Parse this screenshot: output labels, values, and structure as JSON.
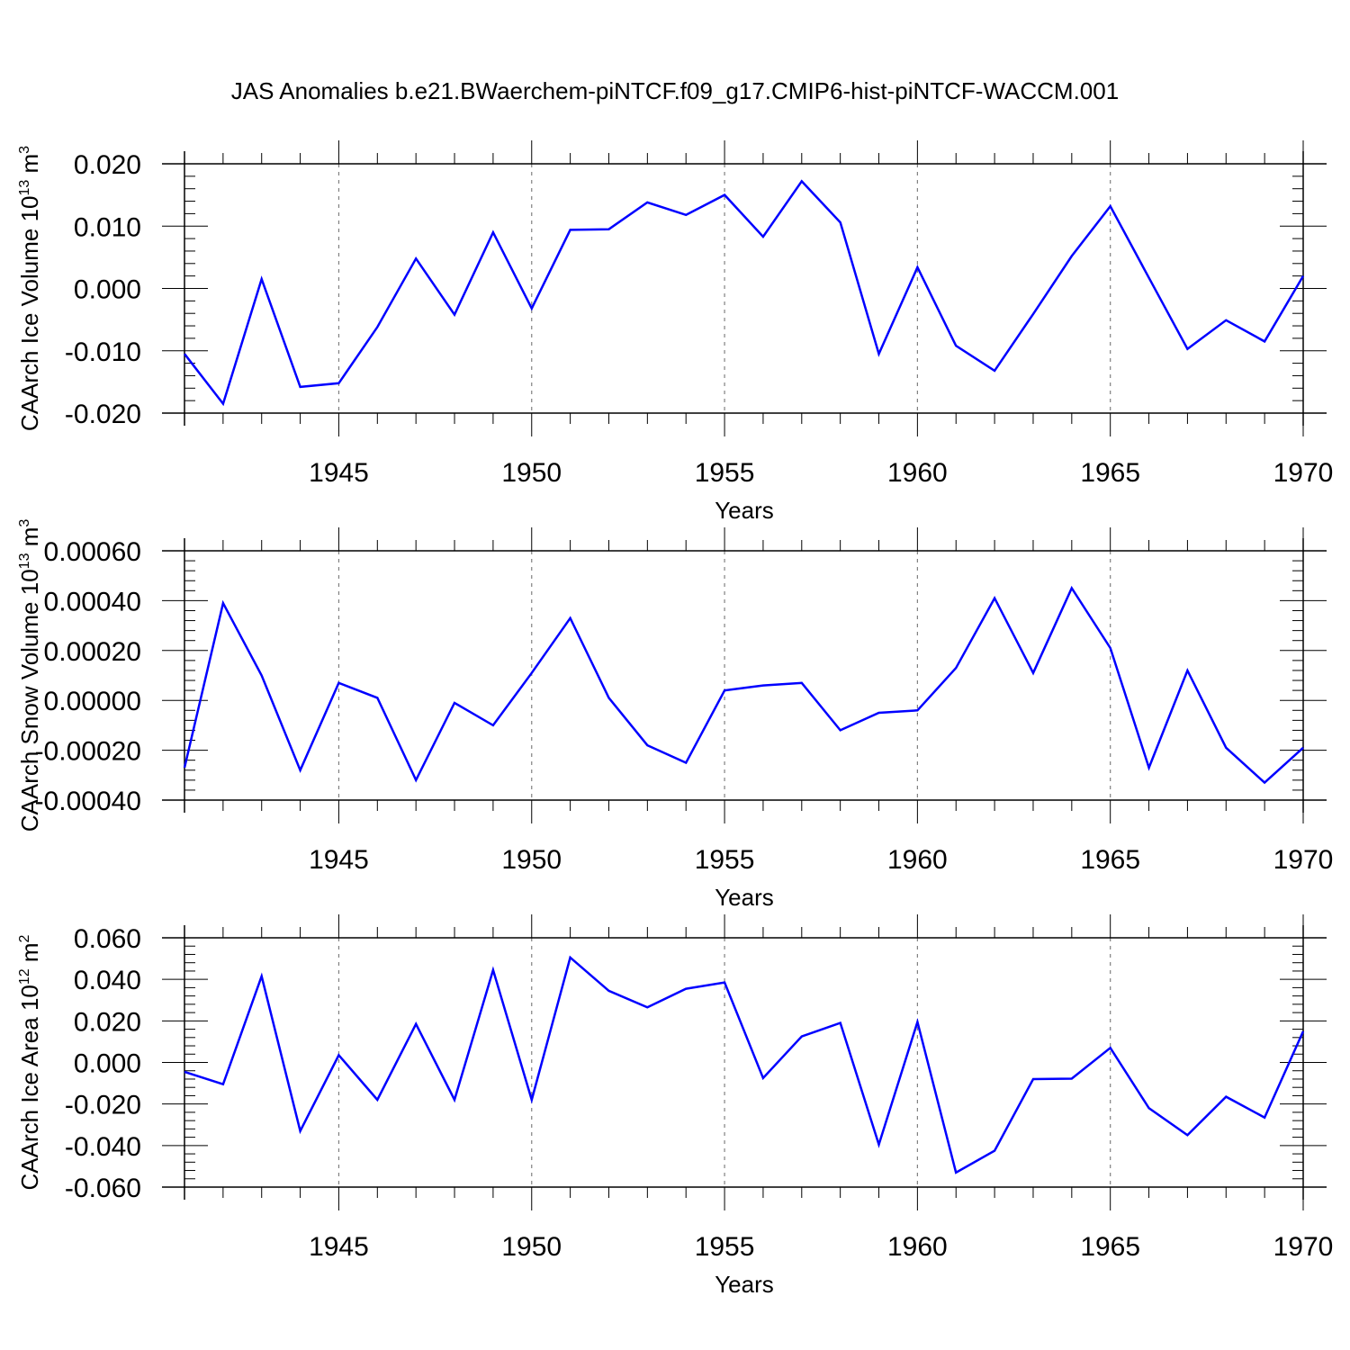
{
  "title": "JAS Anomalies b.e21.BWaerchem-piNTCF.f09_g17.CMIP6-hist-piNTCF-WACCM.001",
  "colors": {
    "line": "#0000ff",
    "axis": "#000000",
    "grid": "#808080",
    "background": "#ffffff"
  },
  "x_ticks": [
    "1945",
    "1950",
    "1955",
    "1960",
    "1965",
    "1970"
  ],
  "chart_data": [
    {
      "type": "line",
      "title": "JAS Anomalies b.e21.BWaerchem-piNTCF.f09_g17.CMIP6-hist-piNTCF-WACCM.001",
      "xlabel": "Years",
      "ylabel": {
        "main": "CAArch Ice Volume 10",
        "sup": "13",
        "unit": " m",
        "unit_sup": "3"
      },
      "xlim": [
        1940.8,
        1970.6
      ],
      "ylim": [
        -0.02,
        0.02
      ],
      "ytick_values": [
        -0.02,
        -0.01,
        0.0,
        0.01,
        0.02
      ],
      "ytick_labels": [
        "-0.020",
        "-0.010",
        "0.000",
        "0.010",
        "0.020"
      ],
      "x": [
        1941,
        1942,
        1943,
        1944,
        1945,
        1946,
        1947,
        1948,
        1949,
        1950,
        1951,
        1952,
        1953,
        1954,
        1955,
        1956,
        1957,
        1958,
        1959,
        1960,
        1961,
        1962,
        1963,
        1964,
        1965,
        1966,
        1967,
        1968,
        1969,
        1970
      ],
      "series": [
        {
          "name": "CAArch Ice Volume",
          "values": [
            -0.0105,
            -0.0185,
            0.0015,
            -0.0158,
            -0.0152,
            -0.0062,
            0.0048,
            -0.0042,
            0.009,
            -0.0032,
            0.0094,
            0.0095,
            0.0138,
            0.0118,
            0.015,
            0.0083,
            0.0172,
            0.0106,
            -0.0105,
            0.0034,
            -0.0092,
            -0.0132,
            -0.0041,
            0.0052,
            0.0132,
            0.0017,
            -0.0097,
            -0.0051,
            -0.0085,
            0.002
          ]
        }
      ]
    },
    {
      "type": "line",
      "xlabel": "Years",
      "ylabel": {
        "main": "CAArch Snow Volume 10",
        "sup": "13",
        "unit": " m",
        "unit_sup": "3"
      },
      "xlim": [
        1940.8,
        1970.6
      ],
      "ylim": [
        -0.0004,
        0.0006
      ],
      "ytick_values": [
        -0.0004,
        -0.0002,
        0.0,
        0.0002,
        0.0004,
        0.0006
      ],
      "ytick_labels": [
        "-0.00040",
        "-0.00020",
        "0.00000",
        "0.00020",
        "0.00040",
        "0.00060"
      ],
      "x": [
        1941,
        1942,
        1943,
        1944,
        1945,
        1946,
        1947,
        1948,
        1949,
        1950,
        1951,
        1952,
        1953,
        1954,
        1955,
        1956,
        1957,
        1958,
        1959,
        1960,
        1961,
        1962,
        1963,
        1964,
        1965,
        1966,
        1967,
        1968,
        1969,
        1970
      ],
      "series": [
        {
          "name": "CAArch Snow Volume",
          "values": [
            -0.00027,
            0.00039,
            0.0001,
            -0.00028,
            7e-05,
            1e-05,
            -0.00032,
            -1e-05,
            -0.0001,
            0.00011,
            0.00033,
            1e-05,
            -0.00018,
            -0.00025,
            4e-05,
            6e-05,
            7e-05,
            -0.00012,
            -5e-05,
            -4e-05,
            0.00013,
            0.00041,
            0.00011,
            0.00045,
            0.00021,
            -0.00027,
            0.00012,
            -0.00019,
            -0.00033,
            -0.00019
          ]
        }
      ]
    },
    {
      "type": "line",
      "xlabel": "Years",
      "ylabel": {
        "main": "CAArch Ice Area 10",
        "sup": "12",
        "unit": " m",
        "unit_sup": "2"
      },
      "xlim": [
        1940.8,
        1970.6
      ],
      "ylim": [
        -0.06,
        0.06
      ],
      "ytick_values": [
        -0.06,
        -0.04,
        -0.02,
        0.0,
        0.02,
        0.04,
        0.06
      ],
      "ytick_labels": [
        "-0.060",
        "-0.040",
        "-0.020",
        "0.000",
        "0.020",
        "0.040",
        "0.060"
      ],
      "x": [
        1941,
        1942,
        1943,
        1944,
        1945,
        1946,
        1947,
        1948,
        1949,
        1950,
        1951,
        1952,
        1953,
        1954,
        1955,
        1956,
        1957,
        1958,
        1959,
        1960,
        1961,
        1962,
        1963,
        1964,
        1965,
        1966,
        1967,
        1968,
        1969,
        1970
      ],
      "series": [
        {
          "name": "CAArch Ice Area",
          "values": [
            -0.0045,
            -0.0105,
            0.0415,
            -0.033,
            0.0035,
            -0.018,
            0.0185,
            -0.018,
            0.0445,
            -0.018,
            0.0505,
            0.0345,
            0.0265,
            0.0355,
            0.0385,
            -0.0075,
            0.0125,
            0.019,
            -0.0395,
            0.0195,
            -0.053,
            -0.0425,
            -0.008,
            -0.0078,
            0.007,
            -0.022,
            -0.035,
            -0.0165,
            -0.0265,
            0.015
          ]
        }
      ]
    }
  ]
}
